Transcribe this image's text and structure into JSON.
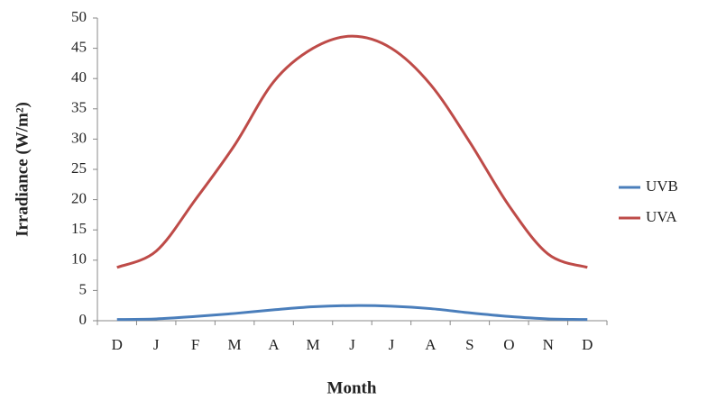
{
  "chart_data": {
    "type": "line",
    "x_label": "Month",
    "y_label": "Irradiance (W/m²)",
    "categories": [
      "D",
      "J",
      "F",
      "M",
      "A",
      "M",
      "J",
      "J",
      "A",
      "S",
      "O",
      "N",
      "D"
    ],
    "series": [
      {
        "name": "UVB",
        "color": "#4a7ebb",
        "values": [
          0.2,
          0.3,
          0.7,
          1.2,
          1.8,
          2.3,
          2.5,
          2.4,
          2.0,
          1.3,
          0.7,
          0.3,
          0.2
        ]
      },
      {
        "name": "UVA",
        "color": "#be4b48",
        "values": [
          8.8,
          11.5,
          20,
          29,
          39.5,
          45,
          47,
          45,
          39,
          29.5,
          19,
          11,
          8.8
        ]
      }
    ],
    "ylim": [
      0,
      50
    ],
    "yticks": [
      0,
      5,
      10,
      15,
      20,
      25,
      30,
      35,
      40,
      45,
      50
    ],
    "smooth": true,
    "legend": "right"
  }
}
